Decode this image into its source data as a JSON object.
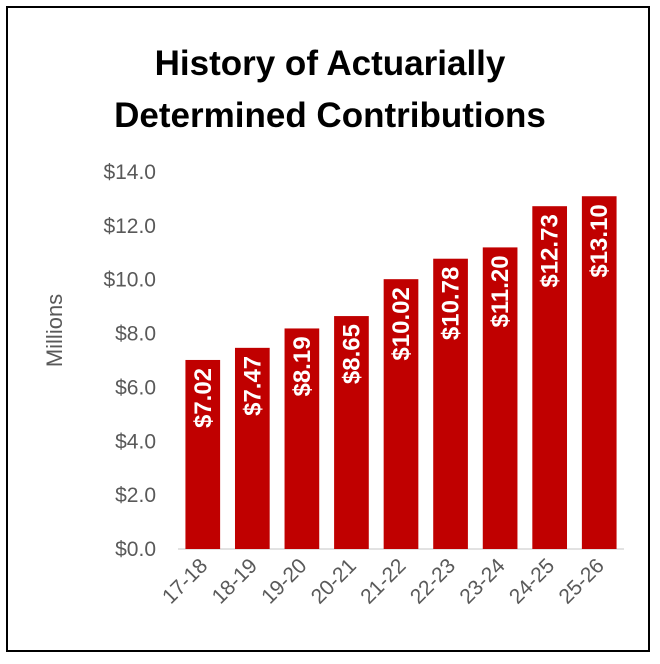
{
  "chart_data": {
    "type": "bar",
    "title_line1": "History of Actuarially",
    "title_line2": "Determined Contributions",
    "ylabel": "Millions",
    "xlabel": "",
    "categories": [
      "17-18",
      "18-19",
      "19-20",
      "20-21",
      "21-22",
      "22-23",
      "23-24",
      "24-25",
      "25-26"
    ],
    "values": [
      7.02,
      7.47,
      8.19,
      8.65,
      10.02,
      10.78,
      11.2,
      12.73,
      13.1
    ],
    "data_labels": [
      "$7.02",
      "$7.47",
      "$8.19",
      "$8.65",
      "$10.02",
      "$10.78",
      "$11.20",
      "$12.73",
      "$13.10"
    ],
    "yticks": [
      "$0.0",
      "$2.0",
      "$4.0",
      "$6.0",
      "$8.0",
      "$10.0",
      "$12.0",
      "$14.0"
    ],
    "ylim": [
      0,
      14
    ],
    "grid": false,
    "bar_color": "#C00000",
    "label_color": "#FFFFFF"
  }
}
